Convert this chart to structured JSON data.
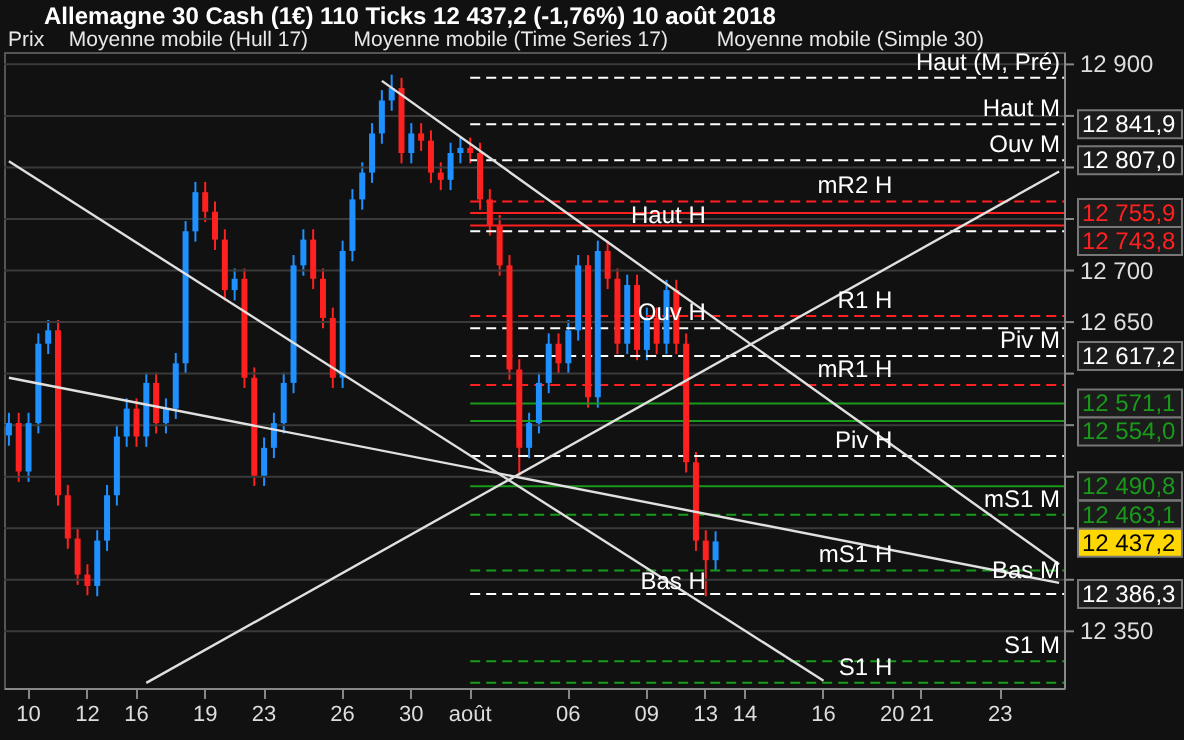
{
  "chart_data": {
    "type": "candlestick",
    "title": "Allemagne 30 Cash (1€)   110 Ticks   12 437,2 (-1,76%)   10 août 2018",
    "annotations": [
      "Prix",
      "Moyenne mobile (Hull 17)",
      "Moyenne mobile (Time Series 17)",
      "Moyenne mobile (Simple 30)",
      {
        "text": "Haut (M, Pré)",
        "y": 12887
      },
      {
        "text": "Haut M",
        "y": 12841.9
      },
      {
        "text": "Ouv M",
        "y": 12807
      },
      {
        "text": "mR2 H",
        "x": "20",
        "y": 12767
      },
      {
        "text": "Haut H",
        "x": "13",
        "y": 12738
      },
      {
        "text": "R1 H",
        "x": "20",
        "y": 12656
      },
      {
        "text": "Ouv H",
        "x": "13",
        "y": 12644
      },
      {
        "text": "Piv M",
        "y": 12617.2
      },
      {
        "text": "mR1 H",
        "x": "20",
        "y": 12589
      },
      {
        "text": "Piv H",
        "x": "20",
        "y": 12520
      },
      {
        "text": "mS1 M",
        "y": 12463.1
      },
      {
        "text": "mS1 H",
        "x": "20",
        "y": 12409
      },
      {
        "text": "Bas M",
        "y": 12394
      },
      {
        "text": "Bas H",
        "x": "13",
        "y": 12383
      },
      {
        "text": "S1 M",
        "y": 12321
      },
      {
        "text": "S1 H",
        "x": "20",
        "y": 12300
      }
    ],
    "categories": [
      null,
      null,
      "10",
      null,
      null,
      null,
      null,
      null,
      "12",
      null,
      null,
      null,
      null,
      "16",
      null,
      null,
      null,
      null,
      null,
      null,
      "19",
      null,
      null,
      null,
      null,
      null,
      "23",
      null,
      null,
      null,
      null,
      null,
      null,
      null,
      "26",
      null,
      null,
      null,
      null,
      null,
      null,
      "30",
      null,
      null,
      null,
      null,
      null,
      "août",
      null,
      null,
      null,
      null,
      null,
      null,
      null,
      null,
      null,
      "06",
      null,
      null,
      null,
      null,
      null,
      null,
      null,
      "09",
      null,
      null,
      null,
      null,
      null,
      "13",
      null,
      null,
      null,
      "14",
      null,
      null,
      null,
      null,
      null,
      null,
      null,
      "16",
      null,
      null,
      null,
      null,
      null,
      null,
      "20",
      null,
      null,
      "21",
      null,
      null,
      null,
      null,
      null,
      null,
      null,
      "23",
      null,
      null,
      null,
      null,
      null,
      null
    ],
    "ohlc": [
      [
        12540,
        12562,
        12530,
        12552
      ],
      [
        12552,
        12562,
        12495,
        12505
      ],
      [
        12505,
        12562,
        12495,
        12552
      ],
      [
        12552,
        12639,
        12542,
        12629
      ],
      [
        12629,
        12652,
        12619,
        12642
      ],
      [
        12642,
        12652,
        12472,
        12482
      ],
      [
        12482,
        12492,
        12430,
        12440
      ],
      [
        12440,
        12450,
        12395,
        12405
      ],
      [
        12405,
        12415,
        12385,
        12394
      ],
      [
        12394,
        12448,
        12384,
        12438
      ],
      [
        12438,
        12492,
        12428,
        12482
      ],
      [
        12482,
        12549,
        12472,
        12539
      ],
      [
        12539,
        12576,
        12529,
        12566
      ],
      [
        12566,
        12576,
        12529,
        12539
      ],
      [
        12539,
        12601,
        12529,
        12591
      ],
      [
        12591,
        12601,
        12542,
        12552
      ],
      [
        12552,
        12576,
        12542,
        12566
      ],
      [
        12566,
        12620,
        12556,
        12610
      ],
      [
        12610,
        12748,
        12600,
        12738
      ],
      [
        12738,
        12786,
        12728,
        12776
      ],
      [
        12776,
        12786,
        12747,
        12757
      ],
      [
        12757,
        12767,
        12720,
        12730
      ],
      [
        12730,
        12740,
        12671,
        12681
      ],
      [
        12681,
        12702,
        12671,
        12692
      ],
      [
        12692,
        12702,
        12586,
        12596
      ],
      [
        12596,
        12606,
        12491,
        12501
      ],
      [
        12501,
        12538,
        12491,
        12528
      ],
      [
        12528,
        12562,
        12518,
        12552
      ],
      [
        12552,
        12601,
        12542,
        12591
      ],
      [
        12591,
        12715,
        12581,
        12705
      ],
      [
        12705,
        12740,
        12695,
        12730
      ],
      [
        12730,
        12740,
        12682,
        12692
      ],
      [
        12692,
        12702,
        12644,
        12654
      ],
      [
        12654,
        12664,
        12586,
        12596
      ],
      [
        12596,
        12729,
        12586,
        12719
      ],
      [
        12719,
        12779,
        12709,
        12769
      ],
      [
        12769,
        12805,
        12759,
        12795
      ],
      [
        12795,
        12843,
        12785,
        12833
      ],
      [
        12833,
        12875,
        12823,
        12865
      ],
      [
        12865,
        12890,
        12855,
        12877
      ],
      [
        12877,
        12887,
        12804,
        12814
      ],
      [
        12814,
        12843,
        12804,
        12833
      ],
      [
        12833,
        12843,
        12816,
        12826
      ],
      [
        12826,
        12836,
        12785,
        12795
      ],
      [
        12795,
        12805,
        12778,
        12788
      ],
      [
        12788,
        12824,
        12778,
        12814
      ],
      [
        12814,
        12829,
        12804,
        12819
      ],
      [
        12819,
        12829,
        12804,
        12814
      ],
      [
        12814,
        12824,
        12759,
        12769
      ],
      [
        12769,
        12779,
        12734,
        12744
      ],
      [
        12744,
        12754,
        12695,
        12705
      ],
      [
        12705,
        12715,
        12594,
        12604
      ],
      [
        12604,
        12614,
        12499,
        12528
      ],
      [
        12528,
        12562,
        12518,
        12552
      ],
      [
        12552,
        12601,
        12542,
        12591
      ],
      [
        12591,
        12639,
        12581,
        12629
      ],
      [
        12629,
        12639,
        12600,
        12610
      ],
      [
        12610,
        12652,
        12600,
        12642
      ],
      [
        12642,
        12715,
        12632,
        12705
      ],
      [
        12705,
        12715,
        12567,
        12577
      ],
      [
        12577,
        12729,
        12567,
        12719
      ],
      [
        12719,
        12729,
        12682,
        12692
      ],
      [
        12692,
        12702,
        12619,
        12629
      ],
      [
        12629,
        12696,
        12619,
        12686
      ],
      [
        12686,
        12696,
        12613,
        12623
      ],
      [
        12623,
        12664,
        12613,
        12654
      ],
      [
        12654,
        12664,
        12619,
        12629
      ],
      [
        12629,
        12691,
        12619,
        12681
      ],
      [
        12681,
        12691,
        12619,
        12629
      ],
      [
        12629,
        12639,
        12504,
        12514
      ],
      [
        12514,
        12524,
        12428,
        12438
      ],
      [
        12438,
        12448,
        12384,
        12419
      ],
      [
        12419,
        12447,
        12409,
        12437.2
      ],
      null,
      null,
      null,
      null,
      null,
      null,
      null,
      null,
      null,
      null,
      null,
      null,
      null,
      null,
      null,
      null,
      null,
      null,
      null,
      null,
      null,
      null,
      null,
      null,
      null,
      null,
      null,
      null,
      null,
      null,
      null,
      null,
      null,
      null,
      null
    ],
    "colors": [
      "#1e90ff",
      "#ff2020",
      "#1e90ff",
      "#1e90ff",
      "#1e90ff",
      "#ff2020",
      "#ff2020",
      "#ff2020",
      "#ff2020",
      "#1e90ff",
      "#1e90ff",
      "#1e90ff",
      "#1e90ff",
      "#ff2020",
      "#1e90ff",
      "#ff2020",
      "#1e90ff",
      "#1e90ff",
      "#1e90ff",
      "#1e90ff",
      "#ff2020",
      "#ff2020",
      "#ff2020",
      "#1e90ff",
      "#ff2020",
      "#ff2020",
      "#1e90ff",
      "#1e90ff",
      "#1e90ff",
      "#1e90ff",
      "#1e90ff",
      "#ff2020",
      "#ff2020",
      "#ff2020",
      "#1e90ff",
      "#1e90ff",
      "#1e90ff",
      "#1e90ff",
      "#1e90ff",
      "#1e90ff",
      "#ff2020",
      "#1e90ff",
      "#ff2020",
      "#ff2020",
      "#ff2020",
      "#1e90ff",
      "#1e90ff",
      "#ff2020",
      "#ff2020",
      "#ff2020",
      "#ff2020",
      "#ff2020",
      "#ff2020",
      "#1e90ff",
      "#1e90ff",
      "#1e90ff",
      "#ff2020",
      "#1e90ff",
      "#1e90ff",
      "#ff2020",
      "#1e90ff",
      "#ff2020",
      "#ff2020",
      "#1e90ff",
      "#ff2020",
      "#1e90ff",
      "#ff2020",
      "#1e90ff",
      "#ff2020",
      "#ff2020",
      "#ff2020",
      "#ff2020",
      "#1e90ff",
      null,
      null,
      null,
      null,
      null,
      null,
      null,
      null,
      null,
      null,
      null,
      null,
      null,
      null,
      null,
      null,
      null,
      null,
      null,
      null,
      null,
      null,
      null,
      null,
      null,
      null,
      null,
      null,
      null,
      null,
      null,
      null,
      null,
      null,
      null
    ],
    "value_labels": [
      null,
      null,
      null,
      null,
      null,
      null,
      null,
      null,
      null,
      null,
      null,
      null,
      null,
      null,
      null,
      null,
      null,
      null,
      null,
      null,
      null,
      null,
      null,
      null,
      null,
      null,
      null,
      null,
      null,
      null,
      null,
      null,
      null,
      null,
      null,
      null,
      null,
      null,
      null,
      null,
      null,
      null,
      null,
      null,
      null,
      null,
      null,
      null,
      null,
      null,
      null,
      null,
      null,
      null,
      null,
      null,
      null,
      null,
      null,
      null,
      null,
      null,
      null,
      null,
      null,
      null,
      null,
      null,
      null,
      null,
      null,
      null,
      "12 437,2",
      null,
      null,
      null,
      null,
      null,
      null,
      null,
      null,
      null,
      null,
      null,
      null,
      null,
      null,
      null,
      null,
      null,
      null,
      null,
      null,
      null,
      null,
      null,
      null,
      null,
      null,
      null,
      null,
      null,
      null,
      null,
      null,
      null,
      null,
      null
    ],
    "series": [
      {
        "type": "line",
        "color": "#e0e0e0",
        "values": [
          12806,
          null,
          null,
          null,
          null,
          null,
          null,
          null,
          null,
          null,
          null,
          null,
          null,
          null,
          null,
          null,
          null,
          null,
          null,
          null,
          null,
          null,
          null,
          null,
          null,
          null,
          null,
          null,
          null,
          null,
          null,
          null,
          null,
          null,
          null,
          null,
          null,
          null,
          null,
          null,
          null,
          null,
          null,
          null,
          null,
          null,
          null,
          null,
          null,
          null,
          null,
          null,
          null,
          null,
          null,
          null,
          null,
          null,
          null,
          null,
          null,
          null,
          null,
          null,
          null,
          null,
          null,
          null,
          null,
          null,
          null,
          null,
          null,
          null,
          null,
          null,
          null,
          null,
          null,
          null,
          null,
          null,
          null,
          12302,
          null,
          null,
          null,
          null,
          null,
          null,
          null,
          null,
          null,
          null,
          null,
          null,
          null,
          null,
          null,
          null,
          null,
          null,
          null,
          null,
          null,
          null,
          null,
          null
        ]
      },
      {
        "type": "line",
        "color": "#e0e0e0",
        "values": [
          12596,
          null,
          null,
          null,
          null,
          null,
          null,
          null,
          null,
          null,
          null,
          null,
          null,
          null,
          null,
          null,
          null,
          null,
          null,
          null,
          null,
          null,
          null,
          null,
          null,
          null,
          null,
          null,
          null,
          null,
          null,
          null,
          null,
          null,
          null,
          null,
          null,
          null,
          null,
          null,
          null,
          null,
          null,
          null,
          null,
          null,
          null,
          null,
          null,
          null,
          null,
          null,
          null,
          null,
          null,
          null,
          null,
          null,
          null,
          null,
          null,
          null,
          null,
          null,
          null,
          null,
          null,
          null,
          null,
          null,
          null,
          null,
          null,
          null,
          null,
          null,
          null,
          null,
          null,
          null,
          null,
          null,
          null,
          null,
          null,
          null,
          null,
          null,
          null,
          null,
          null,
          null,
          null,
          null,
          null,
          null,
          null,
          null,
          null,
          null,
          null,
          null,
          null,
          null,
          null,
          null,
          null,
          12397
        ]
      },
      {
        "type": "line",
        "color": "#e0e0e0",
        "values": [
          null,
          null,
          null,
          null,
          null,
          null,
          null,
          null,
          null,
          null,
          null,
          null,
          null,
          null,
          12300,
          null,
          null,
          null,
          null,
          null,
          null,
          null,
          null,
          null,
          null,
          null,
          null,
          null,
          null,
          null,
          null,
          null,
          null,
          null,
          null,
          null,
          null,
          null,
          null,
          null,
          null,
          null,
          null,
          null,
          null,
          null,
          null,
          null,
          null,
          null,
          null,
          null,
          null,
          null,
          null,
          null,
          null,
          null,
          null,
          null,
          null,
          null,
          null,
          null,
          null,
          null,
          null,
          null,
          null,
          null,
          null,
          null,
          null,
          null,
          null,
          null,
          null,
          null,
          null,
          null,
          null,
          null,
          null,
          null,
          null,
          null,
          null,
          null,
          null,
          null,
          null,
          null,
          null,
          null,
          null,
          null,
          null,
          null,
          null,
          null,
          null,
          null,
          null,
          null,
          null,
          null,
          null,
          12796
        ]
      },
      {
        "type": "line",
        "color": "#e0e0e0",
        "values": [
          null,
          null,
          null,
          null,
          null,
          null,
          null,
          null,
          null,
          null,
          null,
          null,
          null,
          null,
          null,
          null,
          null,
          null,
          null,
          null,
          null,
          null,
          null,
          null,
          null,
          null,
          null,
          null,
          null,
          null,
          null,
          null,
          null,
          null,
          null,
          null,
          null,
          null,
          12884,
          null,
          null,
          null,
          null,
          null,
          null,
          null,
          null,
          null,
          null,
          null,
          null,
          null,
          null,
          null,
          null,
          null,
          null,
          null,
          null,
          null,
          null,
          null,
          null,
          null,
          null,
          null,
          null,
          null,
          null,
          null,
          null,
          null,
          null,
          null,
          null,
          null,
          null,
          null,
          null,
          null,
          null,
          null,
          null,
          null,
          null,
          null,
          null,
          null,
          null,
          null,
          null,
          null,
          null,
          null,
          null,
          null,
          null,
          null,
          null,
          null,
          null,
          null,
          null,
          null,
          null,
          null,
          null,
          12415
        ]
      }
    ],
    "ref_lines": [
      {
        "axis": "y",
        "value": 12887,
        "label": null,
        "color": "#ffffff",
        "line_style": "dashed"
      },
      {
        "axis": "y",
        "value": 12841.9,
        "label": "12 841,9",
        "color": "#ffffff",
        "line_style": "dashed"
      },
      {
        "axis": "y",
        "value": 12807,
        "label": "12 807,0",
        "color": "#ffffff",
        "line_style": "dashed"
      },
      {
        "axis": "y",
        "value": 12767,
        "label": null,
        "color": "#ff2020",
        "line_style": "dashed"
      },
      {
        "axis": "y",
        "value": 12755.9,
        "label": "12 755,9",
        "color": "#ff2020",
        "line_style": "solid"
      },
      {
        "axis": "y",
        "value": 12743.8,
        "label": "12 743,8",
        "color": "#ff2020",
        "line_style": "solid"
      },
      {
        "axis": "y",
        "value": 12738,
        "label": null,
        "color": "#ffffff",
        "line_style": "dashed"
      },
      {
        "axis": "y",
        "value": 12656,
        "label": null,
        "color": "#ff2020",
        "line_style": "dashed"
      },
      {
        "axis": "y",
        "value": 12644,
        "label": null,
        "color": "#ffffff",
        "line_style": "dashed"
      },
      {
        "axis": "y",
        "value": 12617.2,
        "label": "12 617,2",
        "color": "#ffffff",
        "line_style": "dashed"
      },
      {
        "axis": "y",
        "value": 12589,
        "label": null,
        "color": "#ff2020",
        "line_style": "dashed"
      },
      {
        "axis": "y",
        "value": 12571.1,
        "label": "12 571,1",
        "color": "#1a9a1a",
        "line_style": "solid"
      },
      {
        "axis": "y",
        "value": 12554,
        "label": "12 554,0",
        "color": "#1a9a1a",
        "line_style": "solid"
      },
      {
        "axis": "y",
        "value": 12520,
        "label": null,
        "color": "#ffffff",
        "line_style": "dashed"
      },
      {
        "axis": "y",
        "value": 12490.8,
        "label": "12 490,8",
        "color": "#1a9a1a",
        "line_style": "solid"
      },
      {
        "axis": "y",
        "value": 12463.1,
        "label": "12 463,1",
        "color": "#1a9a1a",
        "line_style": "dashed"
      },
      {
        "axis": "y",
        "value": 12409,
        "label": null,
        "color": "#1a9a1a",
        "line_style": "dashed"
      },
      {
        "axis": "y",
        "value": 12386.3,
        "label": "12 386,3",
        "color": "#ffffff",
        "line_style": "dashed"
      },
      {
        "axis": "y",
        "value": 12321,
        "label": null,
        "color": "#1a9a1a",
        "line_style": "dashed"
      },
      {
        "axis": "y",
        "value": 12300,
        "label": null,
        "color": "#1a9a1a",
        "line_style": "dashed"
      }
    ],
    "ylim": [
      12295,
      12912
    ],
    "yticks": [
      {
        "value": 12350,
        "label": "12 350"
      },
      {
        "value": 12400,
        "label": null
      },
      {
        "value": 12450,
        "label": null
      },
      {
        "value": 12500,
        "label": null
      },
      {
        "value": 12550,
        "label": null
      },
      {
        "value": 12600,
        "label": null
      },
      {
        "value": 12650,
        "label": "12 650"
      },
      {
        "value": 12700,
        "label": "12 700"
      },
      {
        "value": 12750,
        "label": null
      },
      {
        "value": 12800,
        "label": null
      },
      {
        "value": 12850,
        "label": null
      },
      {
        "value": 12900,
        "label": "12 900"
      }
    ],
    "grid": "y"
  }
}
